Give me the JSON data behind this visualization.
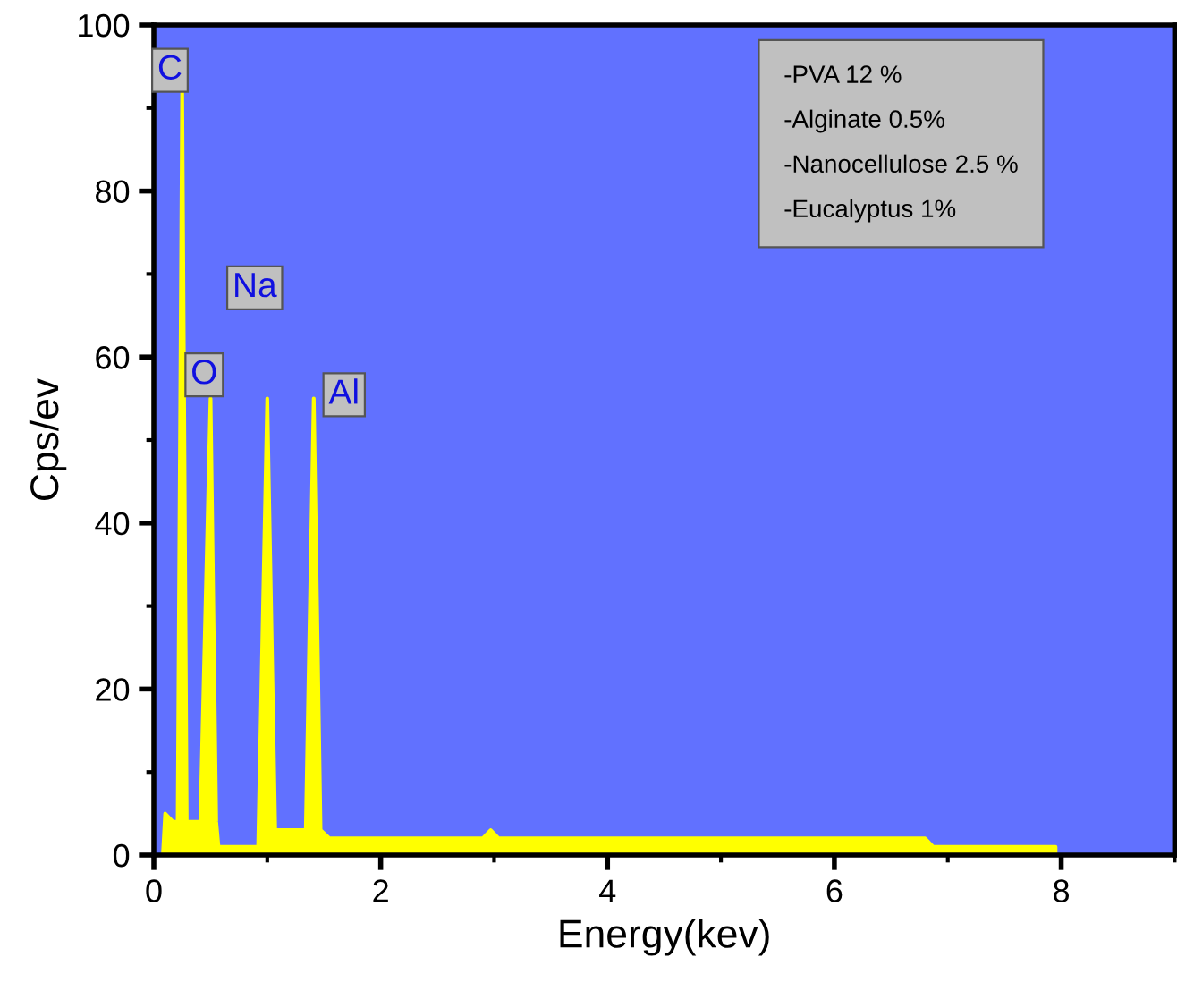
{
  "chart_data": {
    "type": "area",
    "xlabel": "Energy(kev)",
    "ylabel": "Cps/ev",
    "x": [
      0.08,
      0.1,
      0.17,
      0.21,
      0.25,
      0.29,
      0.37,
      0.41,
      0.5,
      0.55,
      0.57,
      0.92,
      1.0,
      1.07,
      1.34,
      1.41,
      1.47,
      1.55,
      2.9,
      2.97,
      3.04,
      6.8,
      6.87,
      7.95,
      7.95
    ],
    "series": [
      {
        "color": "#ffff00",
        "values": [
          0,
          5,
          4,
          4,
          92,
          4,
          4,
          4,
          55,
          4,
          1,
          1,
          55,
          3,
          3,
          55,
          3,
          2,
          2,
          3,
          2,
          2,
          1,
          1,
          0
        ]
      }
    ],
    "xlim": [
      0,
      9
    ],
    "ylim": [
      0,
      100
    ],
    "xticks": [
      0,
      2,
      4,
      6,
      8
    ],
    "yticks": [
      0,
      20,
      40,
      60,
      80,
      100
    ],
    "grid": false,
    "annotations": [
      {
        "text": "C",
        "x": 0.25,
        "y": 92
      },
      {
        "text": "O",
        "x": 0.5,
        "y": 55
      },
      {
        "text": "Na",
        "x": 1.0,
        "y": 55
      },
      {
        "text": "Al",
        "x": 1.41,
        "y": 55
      },
      "-PVA 12 %",
      "-Alginate 0.5%",
      "-Nanocellulose 2.5 %",
      "-Eucalyptus 1%"
    ]
  }
}
